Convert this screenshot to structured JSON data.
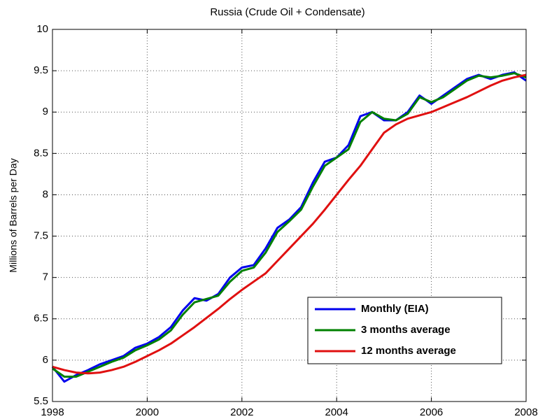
{
  "chart_data": {
    "type": "line",
    "title": "Russia (Crude Oil + Condensate)",
    "y_label": "Millions of Barrels per Day",
    "x": [
      1998,
      1998.25,
      1998.5,
      1998.75,
      1999,
      1999.25,
      1999.5,
      1999.75,
      2000,
      2000.25,
      2000.5,
      2000.75,
      2001,
      2001.25,
      2001.5,
      2001.75,
      2002,
      2002.25,
      2002.5,
      2002.75,
      2003,
      2003.25,
      2003.5,
      2003.75,
      2004,
      2004.25,
      2004.5,
      2004.75,
      2005,
      2005.25,
      2005.5,
      2005.75,
      2006,
      2006.25,
      2006.5,
      2006.75,
      2007,
      2007.25,
      2007.5,
      2007.75,
      2008
    ],
    "series": [
      {
        "name": "Monthly (EIA)",
        "color": "#0000ee",
        "values": [
          5.92,
          5.74,
          5.82,
          5.88,
          5.95,
          6.0,
          6.05,
          6.15,
          6.2,
          6.28,
          6.4,
          6.6,
          6.75,
          6.72,
          6.8,
          7.0,
          7.12,
          7.15,
          7.35,
          7.6,
          7.7,
          7.85,
          8.15,
          8.4,
          8.45,
          8.6,
          8.95,
          9.0,
          8.9,
          8.9,
          9.0,
          9.2,
          9.1,
          9.2,
          9.3,
          9.4,
          9.45,
          9.4,
          9.45,
          9.48,
          9.38
        ]
      },
      {
        "name": "3 months average",
        "color": "#008000",
        "values": [
          5.9,
          5.8,
          5.8,
          5.86,
          5.92,
          5.98,
          6.03,
          6.12,
          6.18,
          6.25,
          6.36,
          6.55,
          6.7,
          6.74,
          6.78,
          6.95,
          7.08,
          7.12,
          7.3,
          7.55,
          7.68,
          7.82,
          8.1,
          8.35,
          8.45,
          8.55,
          8.88,
          9.0,
          8.92,
          8.9,
          8.98,
          9.18,
          9.12,
          9.18,
          9.28,
          9.38,
          9.44,
          9.42,
          9.44,
          9.47,
          9.42
        ]
      },
      {
        "name": "12 months average",
        "color": "#e01010",
        "values": [
          5.92,
          5.88,
          5.85,
          5.84,
          5.85,
          5.88,
          5.92,
          5.98,
          6.05,
          6.12,
          6.2,
          6.3,
          6.4,
          6.51,
          6.62,
          6.74,
          6.85,
          6.95,
          7.05,
          7.2,
          7.35,
          7.5,
          7.65,
          7.82,
          8.0,
          8.18,
          8.35,
          8.55,
          8.75,
          8.85,
          8.92,
          8.96,
          9.0,
          9.06,
          9.12,
          9.18,
          9.25,
          9.32,
          9.38,
          9.42,
          9.45
        ]
      }
    ],
    "xlim": [
      1998,
      2008
    ],
    "xticks": [
      1998,
      2000,
      2002,
      2004,
      2006,
      2008
    ],
    "ylim": [
      5.5,
      10
    ],
    "yticks": [
      5.5,
      6,
      6.5,
      7,
      7.5,
      8,
      8.5,
      9,
      9.5,
      10
    ],
    "grid": true,
    "legend": "lower right"
  }
}
